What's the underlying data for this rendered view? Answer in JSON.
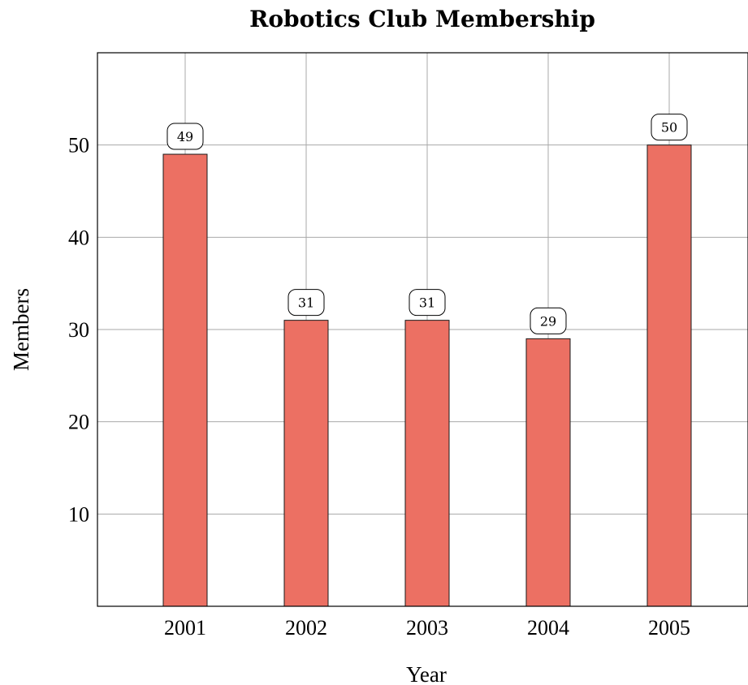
{
  "chart_data": {
    "type": "bar",
    "title": "Robotics Club Membership",
    "xlabel": "Year",
    "ylabel": "Members",
    "categories": [
      "2001",
      "2002",
      "2003",
      "2004",
      "2005"
    ],
    "values": [
      49,
      31,
      31,
      29,
      50
    ],
    "ylim": [
      0,
      60
    ],
    "yticks": [
      10,
      20,
      30,
      40,
      50
    ],
    "grid": true,
    "bar_color": "#ec7063",
    "data_labels": true
  }
}
